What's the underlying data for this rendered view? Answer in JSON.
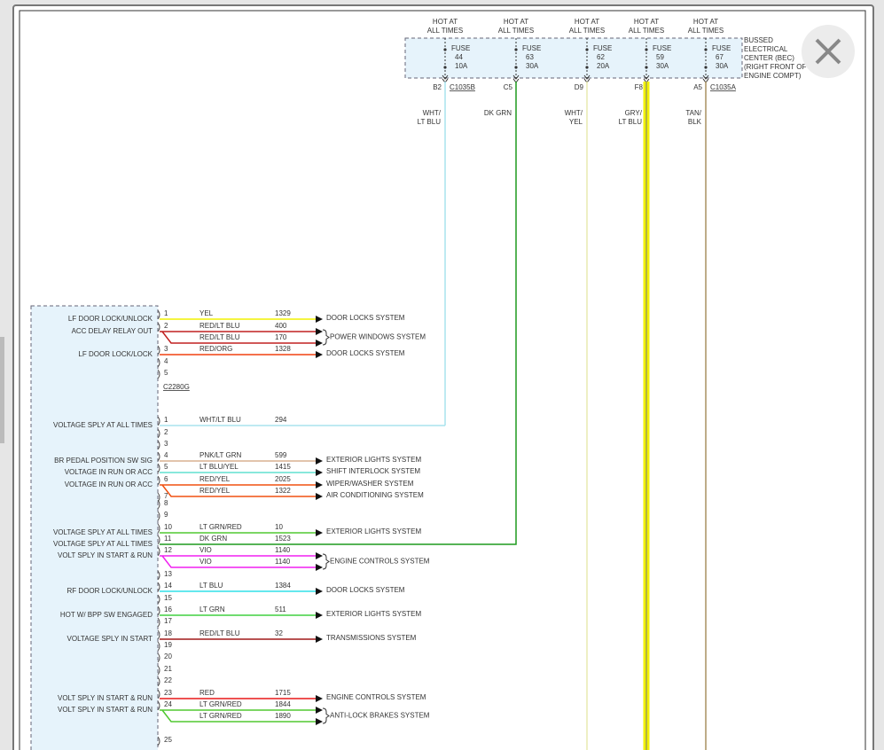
{
  "bec_label": [
    "BUSSED",
    "ELECTRICAL",
    "CENTER (BEC)",
    "(RIGHT FRONT OF",
    "ENGINE COMPT)"
  ],
  "fuses": [
    {
      "hot": [
        "HOT AT",
        "ALL TIMES"
      ],
      "label": "FUSE",
      "number": "44",
      "rating": "10A",
      "pin": "B2",
      "connector": "C1035B",
      "wire": [
        "WHT/",
        "LT BLU"
      ],
      "color": "#a8e4ee"
    },
    {
      "hot": [
        "HOT AT",
        "ALL TIMES"
      ],
      "label": "FUSE",
      "number": "63",
      "rating": "30A",
      "pin": "C5",
      "wire": [
        "DK GRN"
      ],
      "color": "#1f9a1f"
    },
    {
      "hot": [
        "HOT AT",
        "ALL TIMES"
      ],
      "label": "FUSE",
      "number": "62",
      "rating": "20A",
      "pin": "D9",
      "wire": [
        "WHT/",
        "YEL"
      ],
      "color": "#e8eab0"
    },
    {
      "hot": [
        "HOT AT",
        "ALL TIMES"
      ],
      "label": "FUSE",
      "number": "59",
      "rating": "30A",
      "pin": "F8",
      "wire": [
        "GRY/",
        "LT BLU"
      ],
      "color": "#f2f200"
    },
    {
      "hot": [
        "HOT AT",
        "ALL TIMES"
      ],
      "label": "FUSE",
      "number": "67",
      "rating": "30A",
      "pin": "A5",
      "connector": "C1035A",
      "wire": [
        "TAN/",
        "BLK"
      ],
      "color": "#a89060"
    }
  ],
  "connectors": [
    {
      "name": "C2280G",
      "pins": [
        {
          "pin": "1",
          "label": "LF DOOR LOCK/UNLOCK",
          "wires": [
            {
              "wire": "YEL",
              "circuit": "1329",
              "dest": "DOOR LOCKS SYSTEM",
              "color": "#f0f000"
            }
          ]
        },
        {
          "pin": "2",
          "label": "ACC DELAY RELAY OUT",
          "dest": "POWER WINDOWS SYSTEM",
          "wires": [
            {
              "wire": "RED/LT BLU",
              "circuit": "400",
              "color": "#c02020"
            },
            {
              "wire": "RED/LT BLU",
              "circuit": "170",
              "color": "#c02020"
            }
          ]
        },
        {
          "pin": "3",
          "label": "LF DOOR LOCK/LOCK",
          "wires": [
            {
              "wire": "RED/ORG",
              "circuit": "1328",
              "dest": "DOOR LOCKS SYSTEM",
              "color": "#f04010"
            }
          ]
        },
        {
          "pin": "4"
        },
        {
          "pin": "5"
        }
      ]
    },
    {
      "pins": [
        {
          "pin": "1",
          "label": "VOLTAGE SPLY AT ALL TIMES",
          "wires": [
            {
              "wire": "WHT/LT BLU",
              "circuit": "294",
              "color": "#a8e4ee"
            }
          ]
        },
        {
          "pin": "2"
        },
        {
          "pin": "3"
        },
        {
          "pin": "4",
          "label": "BR PEDAL POSITION SW SIG",
          "wires": [
            {
              "wire": "PNK/LT GRN",
              "circuit": "599",
              "dest": "EXTERIOR LIGHTS SYSTEM",
              "color": "#d8b090"
            }
          ]
        },
        {
          "pin": "5",
          "label": "VOLTAGE IN RUN OR ACC",
          "wires": [
            {
              "wire": "LT BLU/YEL",
              "circuit": "1415",
              "dest": "SHIFT INTERLOCK SYSTEM",
              "color": "#60e0d0"
            }
          ]
        },
        {
          "pin": "6",
          "label": "VOLTAGE IN RUN OR ACC",
          "wires": [
            {
              "wire": "RED/YEL",
              "circuit": "2025",
              "dest": "WIPER/WASHER SYSTEM",
              "color": "#f05010"
            },
            {
              "wire": "RED/YEL",
              "circuit": "1322",
              "dest": "AIR CONDITIONING SYSTEM",
              "color": "#f05010"
            }
          ]
        },
        {
          "pin": "7"
        },
        {
          "pin": "8"
        },
        {
          "pin": "9"
        },
        {
          "pin": "10",
          "label": "VOLTAGE SPLY AT ALL TIMES",
          "wires": [
            {
              "wire": "LT GRN/RED",
              "circuit": "10",
              "dest": "EXTERIOR LIGHTS SYSTEM",
              "color": "#50c830"
            }
          ]
        },
        {
          "pin": "11",
          "label": "VOLTAGE SPLY AT ALL TIMES",
          "wires": [
            {
              "wire": "DK GRN",
              "circuit": "1523",
              "color": "#1f9a1f"
            }
          ]
        },
        {
          "pin": "12",
          "label": "VOLT SPLY IN START & RUN",
          "dest": "ENGINE CONTROLS SYSTEM",
          "wires": [
            {
              "wire": "VIO",
              "circuit": "1140",
              "color": "#f020f0"
            },
            {
              "wire": "VIO",
              "circuit": "1140",
              "color": "#f020f0"
            }
          ]
        },
        {
          "pin": "13"
        },
        {
          "pin": "14",
          "label": "RF DOOR LOCK/UNLOCK",
          "wires": [
            {
              "wire": "LT BLU",
              "circuit": "1384",
              "dest": "DOOR LOCKS SYSTEM",
              "color": "#30e0e8"
            }
          ]
        },
        {
          "pin": "15"
        },
        {
          "pin": "16",
          "label": "HOT W/ BPP SW ENGAGED",
          "wires": [
            {
              "wire": "LT GRN",
              "circuit": "511",
              "dest": "EXTERIOR LIGHTS SYSTEM",
              "color": "#40d040"
            }
          ]
        },
        {
          "pin": "17"
        },
        {
          "pin": "18",
          "label": "VOLTAGE SPLY IN START",
          "wires": [
            {
              "wire": "RED/LT BLU",
              "circuit": "32",
              "dest": "TRANSMISSIONS SYSTEM",
              "color": "#a01818"
            }
          ]
        },
        {
          "pin": "19"
        },
        {
          "pin": "20"
        },
        {
          "pin": "21"
        },
        {
          "pin": "22"
        },
        {
          "pin": "23",
          "label": "VOLT SPLY IN START & RUN",
          "wires": [
            {
              "wire": "RED",
              "circuit": "1715",
              "dest": "ENGINE CONTROLS SYSTEM",
              "color": "#e81818"
            }
          ]
        },
        {
          "pin": "24",
          "label": "VOLT SPLY IN START & RUN",
          "dest": "ANTI-LOCK BRAKES SYSTEM",
          "wires": [
            {
              "wire": "LT GRN/RED",
              "circuit": "1844",
              "color": "#50c830"
            },
            {
              "wire": "LT GRN/RED",
              "circuit": "1890",
              "color": "#50c830"
            }
          ]
        },
        {
          "pin": "25"
        }
      ]
    }
  ]
}
